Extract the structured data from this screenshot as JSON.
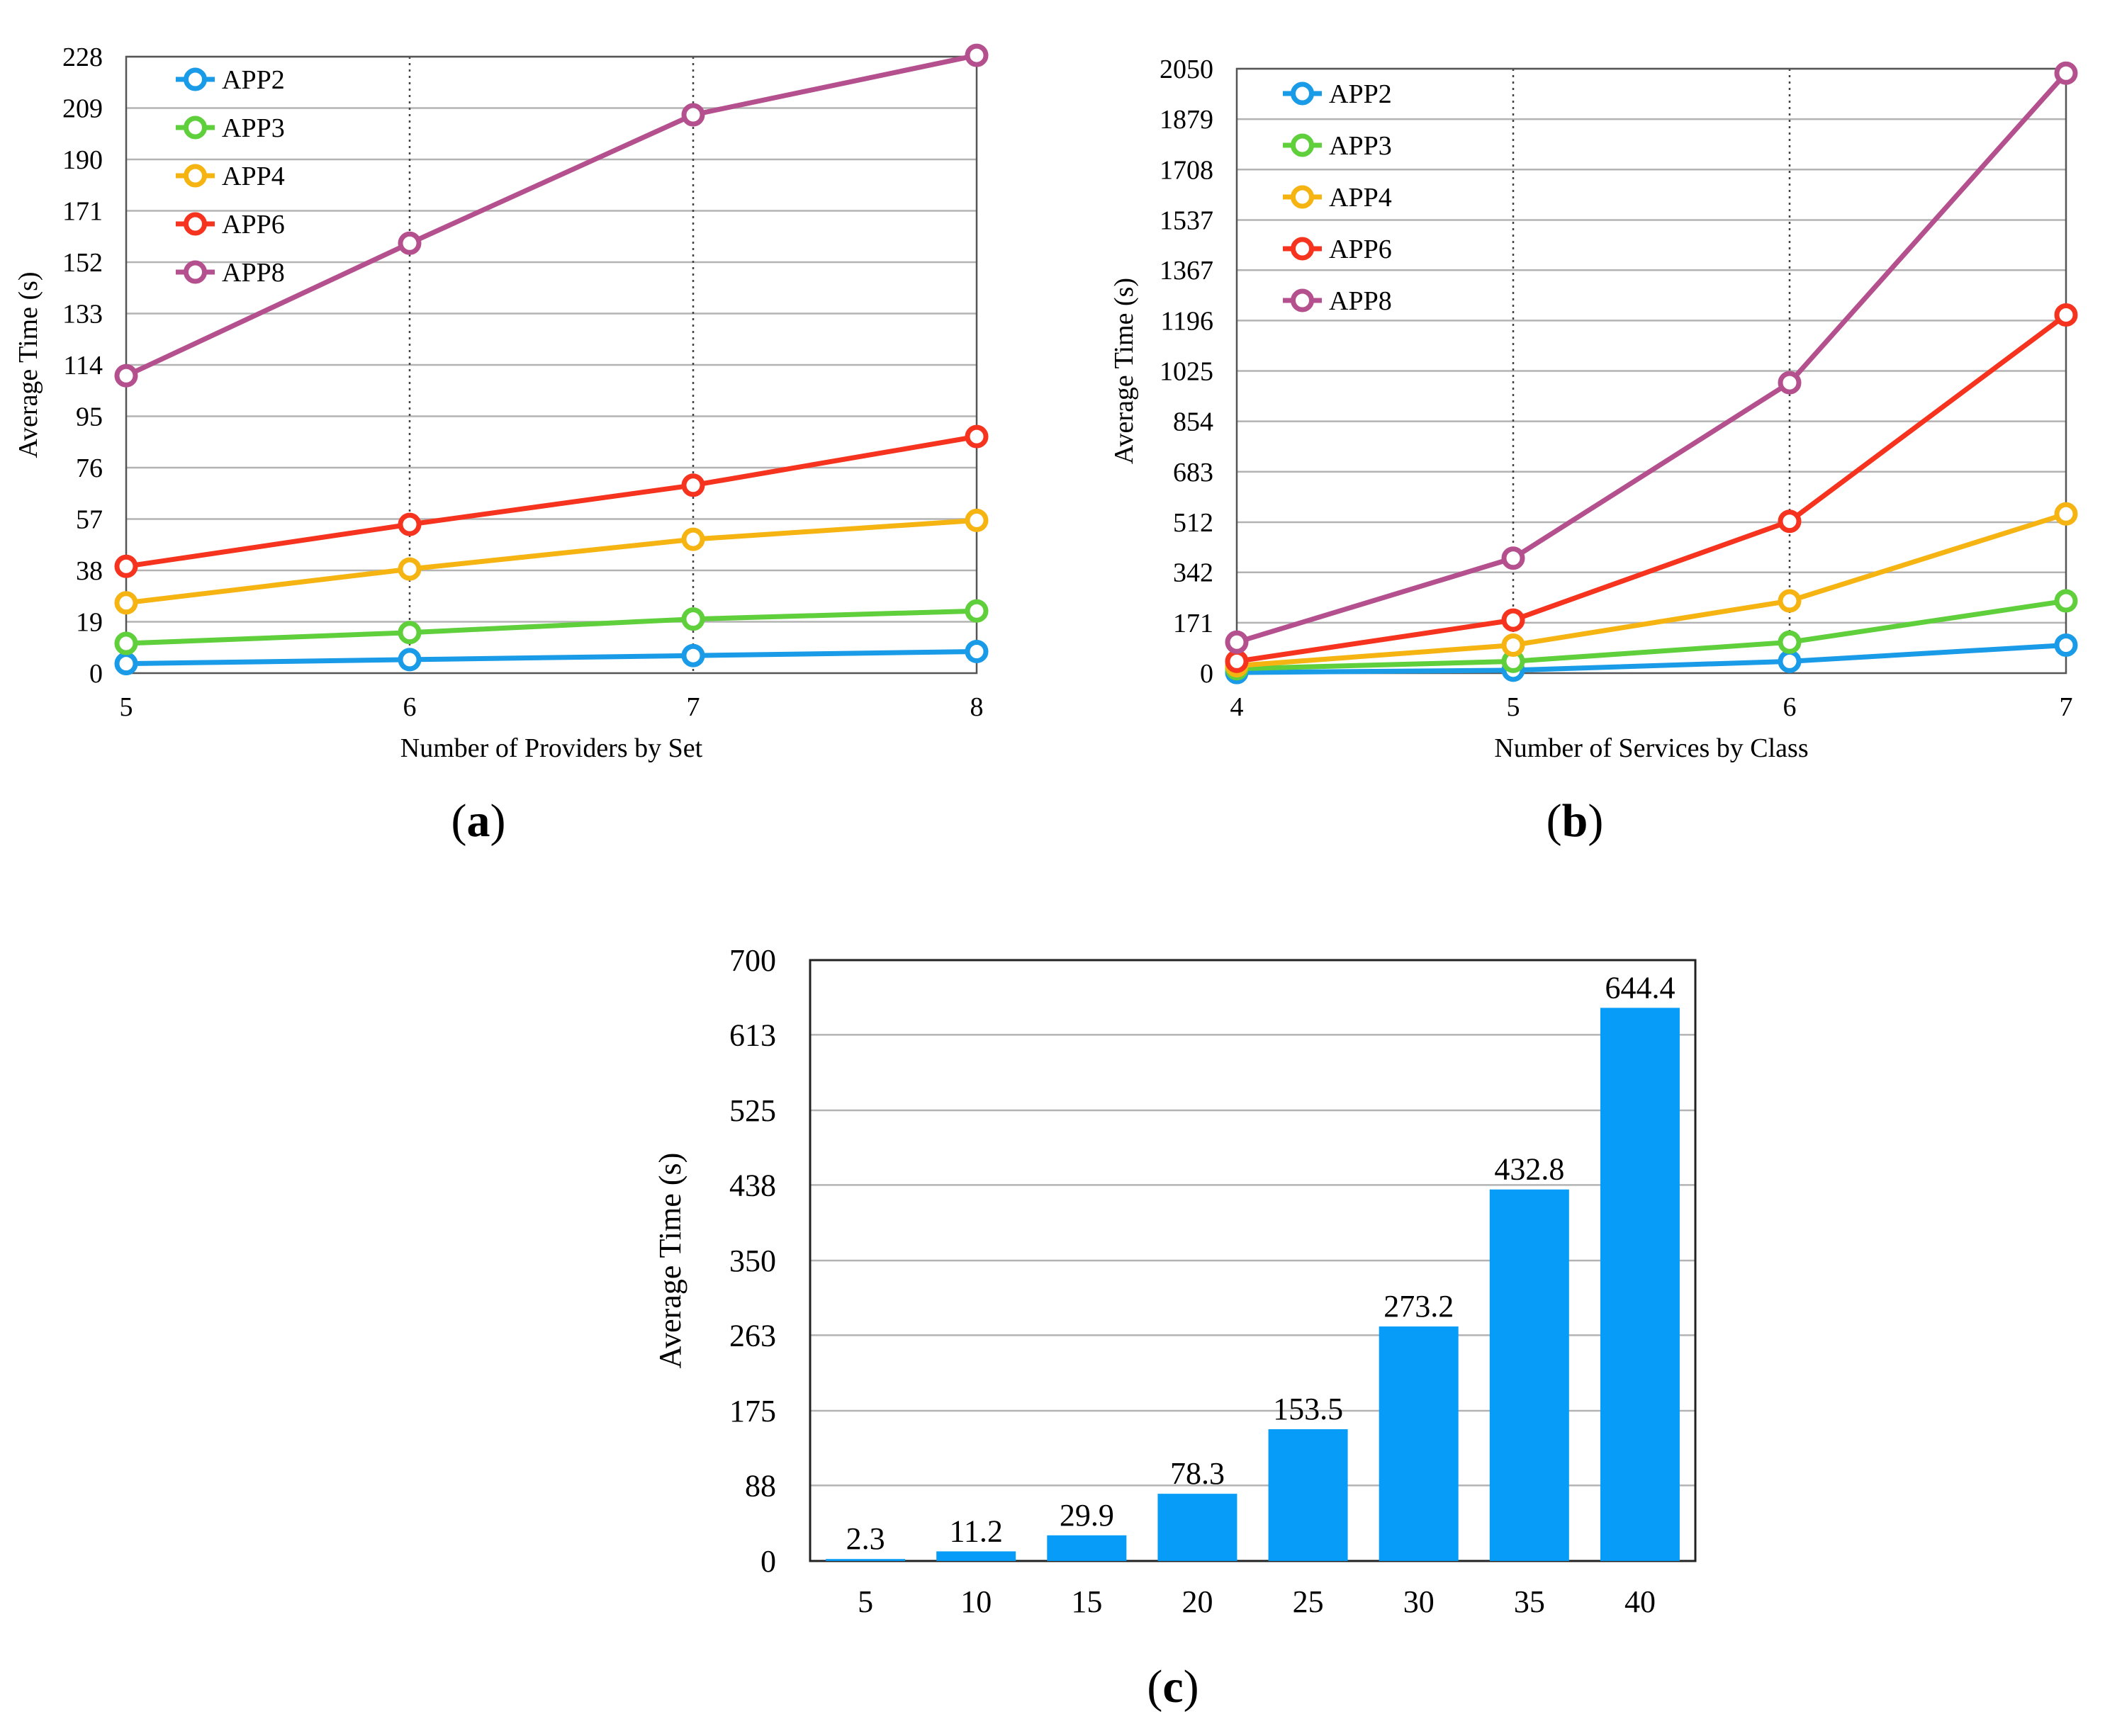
{
  "panels": [
    {
      "id": "a",
      "label_letter": "a",
      "chart_data": {
        "type": "line",
        "xlabel": "Number of Providers by Set",
        "ylabel": "Average Time (s)",
        "x": [
          5,
          6,
          7,
          8
        ],
        "x_tick_labels": [
          "5",
          "6",
          "7",
          "8"
        ],
        "ylim": [
          0,
          228
        ],
        "y_ticks": [
          0,
          19,
          38,
          57,
          76,
          95,
          114,
          133,
          152,
          171,
          190,
          209,
          228
        ],
        "grid": "horizontal solid, vertical dotted",
        "legend_position": "top-left",
        "series": [
          {
            "name": "APP2",
            "color": "#1a9be8",
            "values": [
              3.5,
              5,
              6.5,
              8
            ]
          },
          {
            "name": "APP3",
            "color": "#5fcf3c",
            "values": [
              11,
              15,
              20,
              23
            ]
          },
          {
            "name": "APP4",
            "color": "#f5b412",
            "values": [
              26,
              38.5,
              49.5,
              56.5
            ]
          },
          {
            "name": "APP6",
            "color": "#f5331e",
            "values": [
              39.5,
              55,
              69.5,
              87.5
            ]
          },
          {
            "name": "APP8",
            "color": "#b5508e",
            "values": [
              110,
              159,
              206.5,
              228.5
            ]
          }
        ]
      }
    },
    {
      "id": "b",
      "label_letter": "b",
      "chart_data": {
        "type": "line",
        "xlabel": "Number of Services by Class",
        "ylabel": "Average Time (s)",
        "x": [
          4,
          5,
          6,
          7
        ],
        "x_tick_labels": [
          "4",
          "5",
          "6",
          "7"
        ],
        "ylim": [
          0,
          2050
        ],
        "y_ticks": [
          0,
          171,
          342,
          512,
          683,
          854,
          1025,
          1196,
          1367,
          1537,
          1708,
          1879,
          2050
        ],
        "grid": "horizontal solid, vertical dotted",
        "legend_position": "top-left",
        "series": [
          {
            "name": "APP2",
            "color": "#1a9be8",
            "values": [
              2,
              10,
              40,
              95
            ]
          },
          {
            "name": "APP3",
            "color": "#5fcf3c",
            "values": [
              15,
              40,
              105,
              245
            ]
          },
          {
            "name": "APP4",
            "color": "#f5b412",
            "values": [
              25,
              95,
              245,
              540
            ]
          },
          {
            "name": "APP6",
            "color": "#f5331e",
            "values": [
              40,
              180,
              515,
              1215
            ]
          },
          {
            "name": "APP8",
            "color": "#b5508e",
            "values": [
              105,
              390,
              985,
              2035
            ]
          }
        ]
      }
    },
    {
      "id": "c",
      "label_letter": "c",
      "chart_data": {
        "type": "bar",
        "xlabel": "",
        "ylabel": "Average Time (s)",
        "categories": [
          "5",
          "10",
          "15",
          "20",
          "25",
          "30",
          "35",
          "40"
        ],
        "values": [
          2.3,
          11.2,
          29.9,
          78.3,
          153.5,
          273.2,
          432.8,
          644.4
        ],
        "data_labels": [
          "2.3",
          "11.2",
          "29.9",
          "78.3",
          "153.5",
          "273.2",
          "432.8",
          "644.4"
        ],
        "ylim": [
          0,
          700
        ],
        "y_ticks": [
          0,
          88,
          175,
          263,
          350,
          438,
          525,
          613,
          700
        ],
        "bar_color": "#079cf7",
        "grid": "horizontal solid"
      }
    }
  ]
}
